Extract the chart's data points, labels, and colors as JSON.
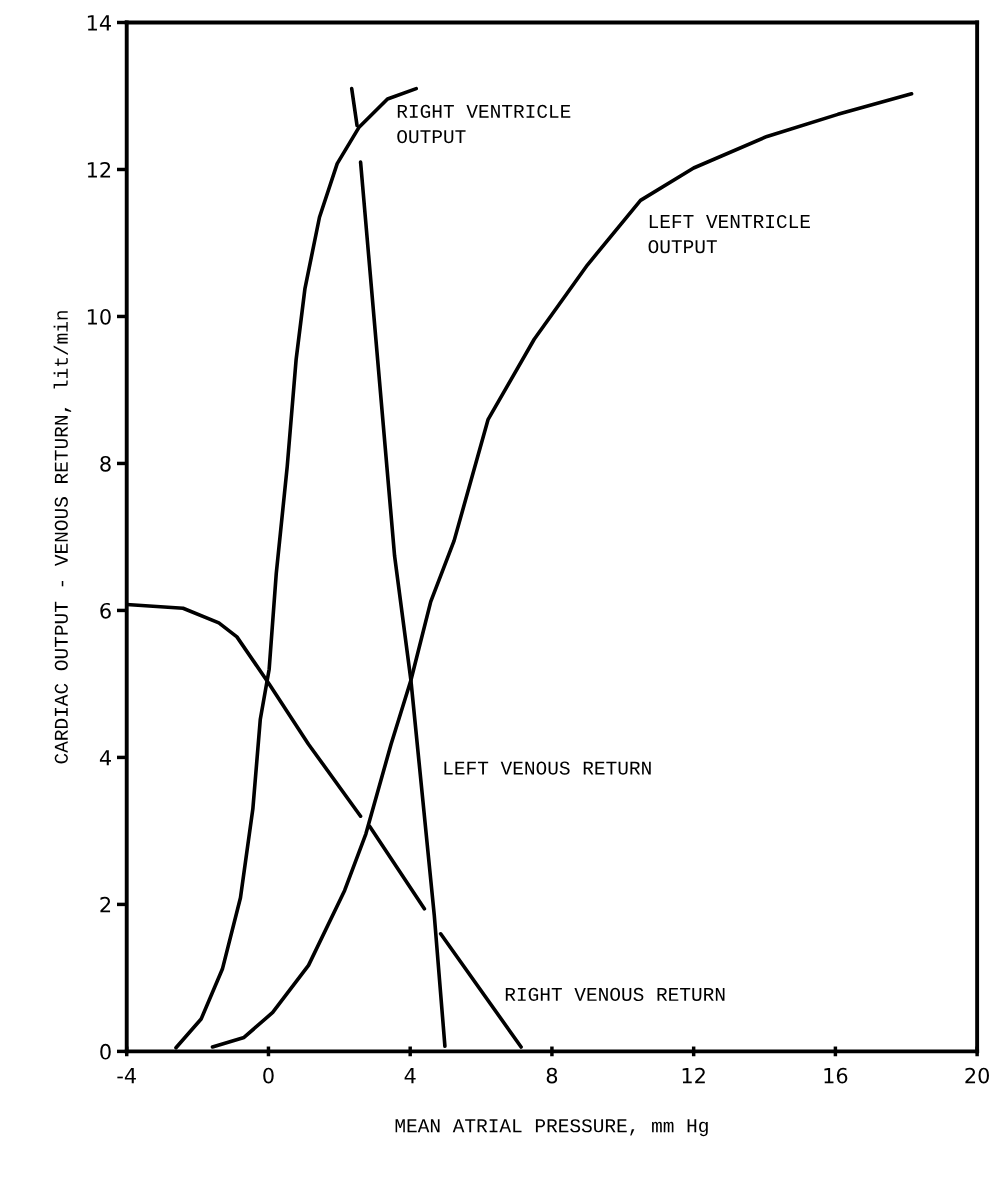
{
  "chart_data": {
    "type": "line",
    "xlabel": "MEAN ATRIAL PRESSURE, mm Hg",
    "ylabel": "CARDIAC OUTPUT - VENOUS RETURN, lit/min",
    "xlim": [
      -4,
      20
    ],
    "xticks": [
      -4,
      0,
      4,
      8,
      12,
      16,
      20
    ],
    "ylim": [
      0,
      14
    ],
    "yticks": [
      0,
      2,
      4,
      6,
      8,
      10,
      12,
      14
    ],
    "grid": false,
    "legend": false,
    "marker": "none",
    "line_style": "solid",
    "series": [
      {
        "color": "#000000",
        "x": [
          -2.61,
          -1.9,
          -1.3,
          -0.79,
          -0.44,
          -0.23,
          0.02,
          0.22,
          0.53,
          0.78,
          1.03,
          1.44,
          1.94,
          2.55,
          3.36,
          4.17
        ],
        "values": [
          0.05,
          0.44,
          1.12,
          2.09,
          3.3,
          4.52,
          5.2,
          6.5,
          7.96,
          9.41,
          10.38,
          11.35,
          12.08,
          12.57,
          12.96,
          13.1
        ]
      },
      {
        "color": "#000000",
        "x": [
          -1.58,
          -0.69,
          0.12,
          1.13,
          2.15,
          2.75,
          3.46,
          4.02,
          4.58,
          5.24,
          6.2,
          7.5,
          9.0,
          10.5,
          12.0,
          14.07,
          16.07,
          18.15
        ],
        "values": [
          0.06,
          0.19,
          0.53,
          1.17,
          2.19,
          2.96,
          4.18,
          5.05,
          6.12,
          6.95,
          8.6,
          9.69,
          10.7,
          11.58,
          12.02,
          12.45,
          12.75,
          13.03
        ]
      },
      {
        "color": "#000000",
        "x": [
          2.35,
          2.5,
          null,
          2.6,
          3.56,
          4.02,
          4.68,
          4.98
        ],
        "values": [
          13.1,
          12.6,
          null,
          12.1,
          6.74,
          5.05,
          1.85,
          0.07
        ]
      },
      {
        "color": "#000000",
        "x": [
          -4,
          -2.41,
          -1.4,
          -0.89,
          0.02,
          1.13,
          2.6,
          null,
          2.86,
          4.4,
          null,
          4.86,
          7.13
        ],
        "values": [
          6.08,
          6.03,
          5.83,
          5.64,
          5.0,
          4.18,
          3.2,
          null,
          3.06,
          1.94,
          null,
          1.6,
          0.06
        ]
      }
    ],
    "annotations": [
      "RIGHT VENTRICLE\nOUTPUT",
      "LEFT VENTRICLE\nOUTPUT",
      "LEFT VENOUS RETURN",
      "RIGHT VENOUS RETURN"
    ]
  }
}
